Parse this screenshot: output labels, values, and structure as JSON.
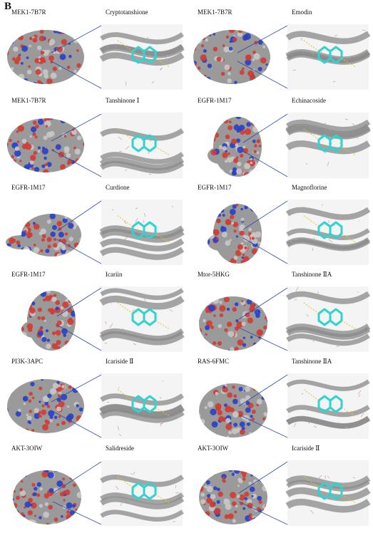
{
  "figure": {
    "panel_label": "B",
    "cells": [
      {
        "target": "MEK1-7B7R",
        "ligand": "Cryptotanshione",
        "shape": "blob"
      },
      {
        "target": "MEK1-7B7R",
        "ligand": "Emodin",
        "shape": "blob"
      },
      {
        "target": "MEK1-7B7R",
        "ligand": "Tanshinone Ⅰ",
        "shape": "blob"
      },
      {
        "target": "EGFR-1M17",
        "ligand": "Echinacoside",
        "shape": "egfr"
      },
      {
        "target": "EGFR-1M17",
        "ligand": "Curdione",
        "shape": "egfr-wide"
      },
      {
        "target": "EGFR-1M17",
        "ligand": "Magnoflorine",
        "shape": "egfr"
      },
      {
        "target": "EGFR-1M17",
        "ligand": "Icariin",
        "shape": "egfr"
      },
      {
        "target": "Mtor-5HKG",
        "ligand": "Tanshinone ⅡA",
        "shape": "round"
      },
      {
        "target": "PI3K-3APC",
        "ligand": "Icariside Ⅱ",
        "shape": "blob"
      },
      {
        "target": "RAS-6FMC",
        "ligand": "Tanshinone ⅡA",
        "shape": "round"
      },
      {
        "target": "AKT-3OIW",
        "ligand": "Salidreside",
        "shape": "round"
      },
      {
        "target": "AKT-3OIW",
        "ligand": "Icariside Ⅱ",
        "shape": "round"
      }
    ]
  },
  "colors": {
    "surface_base": "#9a9a9a",
    "surface_red": "#d23c32",
    "surface_blue": "#2840c8",
    "ligand": "#2fd3d0",
    "connector": "#2b4aa8",
    "ribbon": "#8a8a8a",
    "hbond": "#e8c020"
  }
}
